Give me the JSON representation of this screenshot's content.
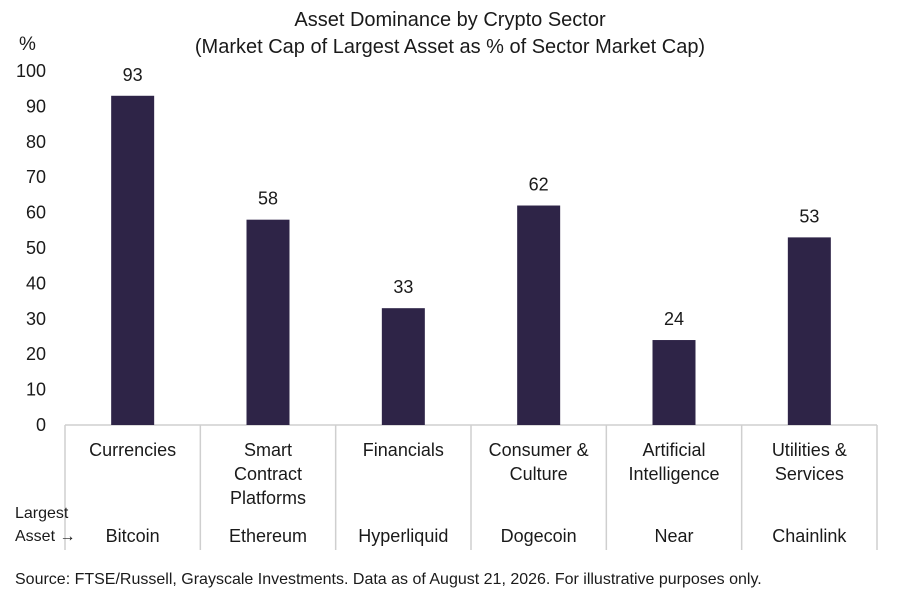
{
  "chart_data": {
    "type": "bar",
    "title": "Asset Dominance by Crypto Sector",
    "subtitle": "(Market Cap of Largest Asset as % of Sector Market Cap)",
    "ylabel": "%",
    "ylim": [
      0,
      100
    ],
    "yticks": [
      0,
      10,
      20,
      30,
      40,
      50,
      60,
      70,
      80,
      90,
      100
    ],
    "categories": [
      [
        "Currencies"
      ],
      [
        "Smart",
        "Contract",
        "Platforms"
      ],
      [
        "Financials"
      ],
      [
        "Consumer &",
        "Culture"
      ],
      [
        "Artificial",
        "Intelligence"
      ],
      [
        "Utilities &",
        "Services"
      ]
    ],
    "values": [
      93,
      58,
      33,
      62,
      24,
      53
    ],
    "largest_asset_label": [
      "Largest",
      "Asset →"
    ],
    "largest_assets": [
      "Bitcoin",
      "Ethereum",
      "Hyperliquid",
      "Dogecoin",
      "Near",
      "Chainlink"
    ],
    "bar_color": "#2e2447",
    "grid": false,
    "legend": "none"
  },
  "source": "Source: FTSE/Russell, Grayscale Investments. Data as of August 21, 2026. For illustrative purposes only."
}
